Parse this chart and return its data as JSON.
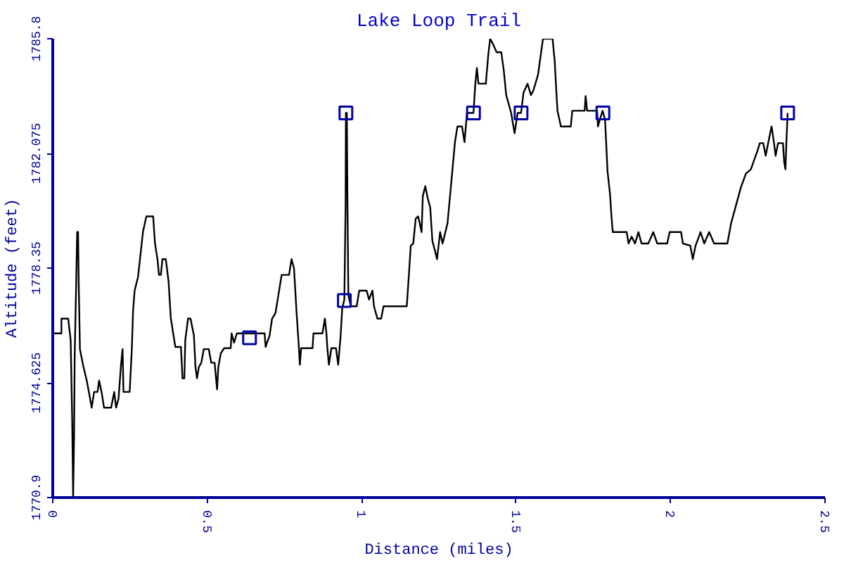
{
  "chart_data": {
    "type": "line",
    "title": "Lake Loop Trail",
    "xlabel": "Distance (miles)",
    "ylabel": "Altitude (feet)",
    "xlim": [
      0,
      2.5
    ],
    "ylim": [
      1770.9,
      1785.8
    ],
    "xticks": [
      0,
      0.5,
      1,
      1.5,
      2,
      2.5
    ],
    "yticks": [
      1770.9,
      1774.625,
      1778.35,
      1782.075,
      1785.8
    ],
    "grid": false,
    "series": [
      {
        "color": "#000000",
        "line_style": "solid",
        "x": [
          0,
          0.028,
          0.028,
          0.05,
          0.058,
          0.063,
          0.066,
          0.069,
          0.071,
          0.076,
          0.079,
          0.082,
          0.084,
          0.088,
          0.098,
          0.11,
          0.121,
          0.126,
          0.134,
          0.145,
          0.15,
          0.158,
          0.166,
          0.189,
          0.199,
          0.205,
          0.213,
          0.221,
          0.226,
          0.229,
          0.249,
          0.256,
          0.26,
          0.265,
          0.276,
          0.292,
          0.303,
          0.325,
          0.331,
          0.339,
          0.344,
          0.35,
          0.355,
          0.366,
          0.375,
          0.382,
          0.391,
          0.397,
          0.415,
          0.42,
          0.426,
          0.429,
          0.438,
          0.446,
          0.457,
          0.462,
          0.467,
          0.473,
          0.481,
          0.489,
          0.505,
          0.513,
          0.524,
          0.532,
          0.536,
          0.544,
          0.555,
          0.576,
          0.579,
          0.587,
          0.596,
          0.623,
          0.686,
          0.689,
          0.694,
          0.702,
          0.71,
          0.721,
          0.741,
          0.765,
          0.773,
          0.781,
          0.789,
          0.797,
          0.8,
          0.804,
          0.841,
          0.844,
          0.873,
          0.881,
          0.886,
          0.889,
          0.894,
          0.902,
          0.917,
          0.924,
          0.932,
          0.937,
          0.944,
          0.948,
          0.949,
          0.952,
          0.954,
          0.957,
          0.965,
          0.984,
          0.992,
          1.016,
          1.024,
          1.035,
          1.04,
          1.051,
          1.063,
          1.071,
          1.146,
          1.151,
          1.159,
          1.167,
          1.175,
          1.183,
          1.194,
          1.198,
          1.206,
          1.214,
          1.222,
          1.229,
          1.237,
          1.244,
          1.254,
          1.262,
          1.278,
          1.294,
          1.302,
          1.31,
          1.325,
          1.333,
          1.341,
          1.362,
          1.368,
          1.373,
          1.378,
          1.402,
          1.41,
          1.416,
          1.424,
          1.437,
          1.452,
          1.46,
          1.468,
          1.484,
          1.495,
          1.505,
          1.516,
          1.524,
          1.537,
          1.548,
          1.556,
          1.571,
          1.587,
          1.611,
          1.618,
          1.625,
          1.63,
          1.634,
          1.645,
          1.677,
          1.682,
          1.722,
          1.725,
          1.73,
          1.762,
          1.765,
          1.773,
          1.78,
          1.788,
          1.796,
          1.804,
          1.809,
          1.813,
          1.858,
          1.864,
          1.874,
          1.885,
          1.896,
          1.906,
          1.928,
          1.944,
          1.957,
          1.989,
          1.997,
          2.034,
          2.04,
          2.064,
          2.072,
          2.081,
          2.097,
          2.109,
          2.125,
          2.141,
          2.184,
          2.196,
          2.204,
          2.216,
          2.228,
          2.244,
          2.26,
          2.281,
          2.289,
          2.3,
          2.308,
          2.316,
          2.327,
          2.335,
          2.34,
          2.348,
          2.364,
          2.368,
          2.372,
          2.375,
          2.379
        ],
        "values": [
          1776.23,
          1776.23,
          1776.71,
          1776.71,
          1776.01,
          1773.38,
          1770.9,
          1772.87,
          1775.5,
          1777.91,
          1779.52,
          1779.52,
          1777.91,
          1775.72,
          1775.21,
          1774.7,
          1774.11,
          1773.82,
          1774.33,
          1774.33,
          1774.7,
          1774.33,
          1773.82,
          1773.82,
          1774.33,
          1773.82,
          1774.11,
          1775.21,
          1775.72,
          1774.33,
          1774.33,
          1775.72,
          1776.96,
          1777.62,
          1778.06,
          1779.52,
          1780.03,
          1780.03,
          1779.15,
          1778.64,
          1778.13,
          1778.13,
          1778.64,
          1778.64,
          1777.91,
          1776.74,
          1776.16,
          1775.79,
          1775.79,
          1774.77,
          1774.77,
          1776.01,
          1776.71,
          1776.71,
          1776.16,
          1775.14,
          1774.77,
          1775.14,
          1775.28,
          1775.72,
          1775.72,
          1775.28,
          1775.28,
          1774.41,
          1775.14,
          1775.58,
          1775.75,
          1775.75,
          1776.23,
          1775.93,
          1776.23,
          1776.23,
          1776.23,
          1775.79,
          1775.94,
          1776.16,
          1776.71,
          1776.89,
          1778.13,
          1778.13,
          1778.64,
          1778.35,
          1776.96,
          1775.75,
          1775.21,
          1775.75,
          1775.75,
          1776.23,
          1776.23,
          1776.71,
          1776.23,
          1775.75,
          1775.21,
          1775.75,
          1775.75,
          1775.21,
          1776.16,
          1777.04,
          1777.33,
          1780.4,
          1783.39,
          1783.39,
          1780.54,
          1777.47,
          1777.11,
          1777.11,
          1777.62,
          1777.62,
          1777.33,
          1777.62,
          1777.11,
          1776.71,
          1776.71,
          1777.11,
          1777.11,
          1777.84,
          1779.08,
          1779.15,
          1779.96,
          1780.03,
          1779.52,
          1780.69,
          1781.01,
          1780.61,
          1780.32,
          1779.23,
          1778.93,
          1778.64,
          1779.52,
          1779.15,
          1779.81,
          1781.56,
          1782.44,
          1782.95,
          1782.95,
          1782.44,
          1783.39,
          1783.39,
          1784.34,
          1784.85,
          1784.34,
          1784.34,
          1785.29,
          1785.8,
          1785.65,
          1785.36,
          1785.36,
          1784.78,
          1783.97,
          1783.39,
          1782.73,
          1783.39,
          1783.39,
          1784.05,
          1784.34,
          1783.97,
          1784.12,
          1784.63,
          1785.8,
          1785.8,
          1785.8,
          1785.07,
          1784.12,
          1783.46,
          1782.95,
          1782.95,
          1783.46,
          1783.46,
          1783.94,
          1783.46,
          1783.46,
          1782.95,
          1783.24,
          1783.46,
          1783.17,
          1781.49,
          1780.76,
          1779.99,
          1779.52,
          1779.52,
          1779.15,
          1779.37,
          1779.15,
          1779.52,
          1779.15,
          1779.15,
          1779.52,
          1779.15,
          1779.15,
          1779.52,
          1779.52,
          1779.15,
          1779.08,
          1778.64,
          1779.08,
          1779.52,
          1779.15,
          1779.52,
          1779.15,
          1779.15,
          1779.81,
          1780.1,
          1780.54,
          1780.98,
          1781.42,
          1781.56,
          1782.15,
          1782.41,
          1782.41,
          1782.0,
          1782.41,
          1782.95,
          1782.41,
          1782.0,
          1782.41,
          1782.41,
          1781.78,
          1781.56,
          1782.44,
          1783.39
        ]
      },
      {
        "type": "scatter",
        "marker": "square",
        "color": "#0000aa",
        "x": [
          0.637,
          0.944,
          0.949,
          1.362,
          1.516,
          1.781,
          2.379
        ],
        "values": [
          1776.09,
          1777.3,
          1783.39,
          1783.39,
          1783.39,
          1783.39,
          1783.39
        ]
      }
    ]
  }
}
